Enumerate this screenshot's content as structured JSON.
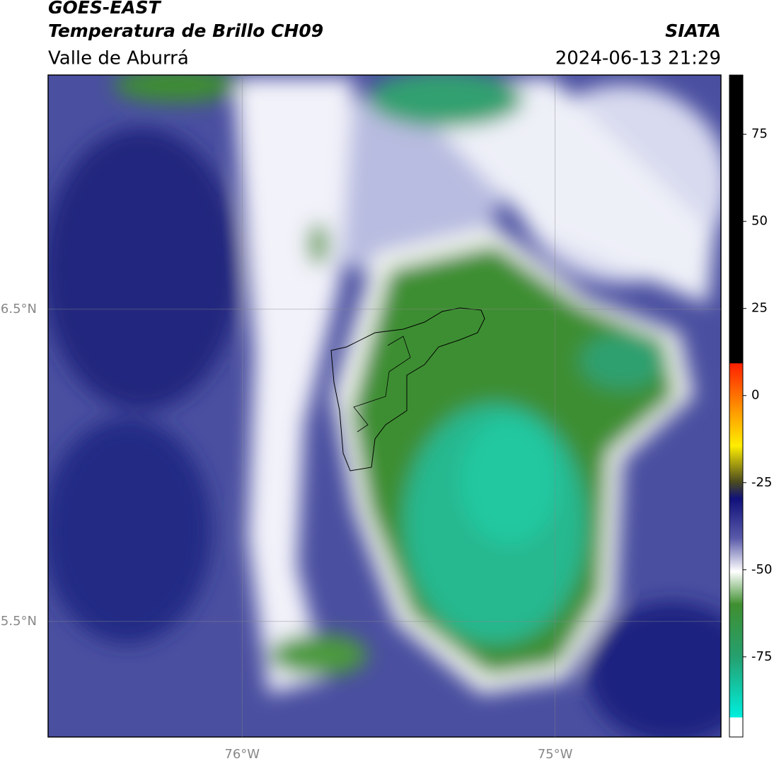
{
  "header": {
    "source": "GOES-EAST",
    "product": "Temperatura de Brillo CH09",
    "region": "Valle de Aburrá",
    "agency": "SIATA",
    "datetime": "2024-06-13 21:29"
  },
  "map": {
    "xlim": [
      -76.62,
      -74.47
    ],
    "ylim": [
      5.13,
      7.25
    ],
    "xticks": [
      {
        "value": -76,
        "label": "76°W"
      },
      {
        "value": -75,
        "label": "75°W"
      }
    ],
    "yticks": [
      {
        "value": 6.5,
        "label": "6.5°N"
      },
      {
        "value": 5.5,
        "label": "5.5°N"
      }
    ],
    "grid": true
  },
  "colorbar": {
    "lim": [
      -98,
      92
    ],
    "ticks": [
      75,
      50,
      25,
      0,
      -25,
      -50,
      -75
    ]
  }
}
